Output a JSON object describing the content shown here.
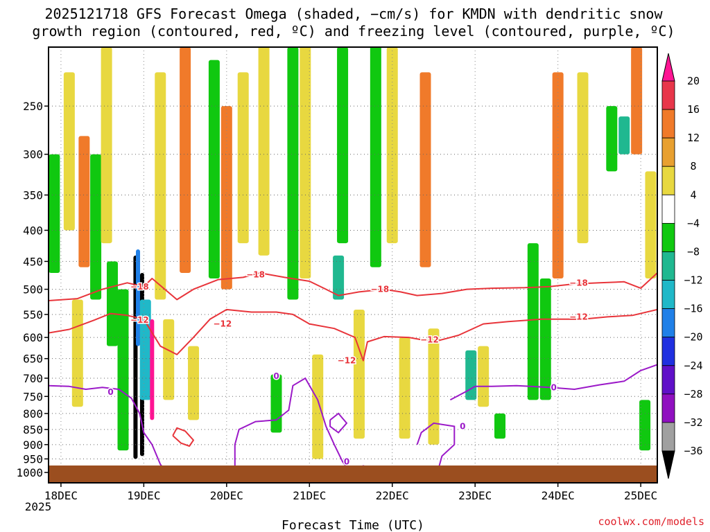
{
  "chart_data": {
    "type": "heatmap",
    "title_line1": "2025121718 GFS Forecast Omega (shaded, −cm/s) for KMDN with dendritic snow",
    "title_line2": "growth region (contoured, red, ºC) and freezing level (contoured, purple, ºC)",
    "xlabel": "Forecast Time (UTC)",
    "ylabel": "",
    "credit": "coolwx.com/models",
    "x_ticks": [
      "18DEC",
      "19DEC",
      "20DEC",
      "21DEC",
      "22DEC",
      "23DEC",
      "24DEC",
      "25DEC"
    ],
    "x_year_label": "2025",
    "x_range_days": [
      17.85,
      25.2
    ],
    "y_range_hPa": [
      1040,
      200
    ],
    "y_ticks": [
      250,
      300,
      350,
      400,
      450,
      500,
      550,
      600,
      650,
      700,
      750,
      800,
      850,
      900,
      950,
      1000
    ],
    "colorbar": {
      "colors": [
        "#ff1493",
        "#e8364a",
        "#f07a2a",
        "#e8a030",
        "#e8d840",
        "#ffffff",
        "#10c810",
        "#20b890",
        "#20b8c8",
        "#2080e8",
        "#2030e0",
        "#6010c8",
        "#9010c0",
        "#a0a0a0",
        "#000000"
      ],
      "labels": [
        "20",
        "16",
        "12",
        "8",
        "4",
        "−4",
        "−8",
        "−12",
        "−16",
        "−20",
        "−24",
        "−28",
        "−32",
        "−36"
      ]
    },
    "dgz_upper_-18C": {
      "color": "#e8343a",
      "label": "−18",
      "points": [
        [
          17.85,
          522
        ],
        [
          18.2,
          518
        ],
        [
          18.5,
          500
        ],
        [
          18.8,
          488
        ],
        [
          19.0,
          495
        ],
        [
          19.1,
          480
        ],
        [
          19.4,
          520
        ],
        [
          19.6,
          500
        ],
        [
          19.9,
          482
        ],
        [
          20.2,
          478
        ],
        [
          20.4,
          470
        ],
        [
          20.7,
          478
        ],
        [
          21.0,
          485
        ],
        [
          21.2,
          500
        ],
        [
          21.35,
          512
        ],
        [
          21.6,
          505
        ],
        [
          21.9,
          500
        ],
        [
          22.1,
          505
        ],
        [
          22.3,
          512
        ],
        [
          22.6,
          508
        ],
        [
          22.9,
          500
        ],
        [
          23.2,
          498
        ],
        [
          23.6,
          497
        ],
        [
          23.9,
          495
        ],
        [
          24.2,
          490
        ],
        [
          24.5,
          488
        ],
        [
          24.8,
          486
        ],
        [
          25.0,
          498
        ],
        [
          25.2,
          470
        ]
      ],
      "label_points": [
        [
          20.35,
          473
        ],
        [
          18.95,
          495
        ],
        [
          21.85,
          500
        ],
        [
          24.25,
          488
        ]
      ]
    },
    "dgz_lower_-12C": {
      "color": "#e8343a",
      "label": "−12",
      "points": [
        [
          17.85,
          590
        ],
        [
          18.1,
          582
        ],
        [
          18.4,
          562
        ],
        [
          18.6,
          548
        ],
        [
          18.8,
          552
        ],
        [
          19.0,
          560
        ],
        [
          19.2,
          620
        ],
        [
          19.4,
          640
        ],
        [
          19.6,
          600
        ],
        [
          19.8,
          560
        ],
        [
          20.0,
          540
        ],
        [
          20.3,
          545
        ],
        [
          20.6,
          545
        ],
        [
          20.8,
          550
        ],
        [
          21.0,
          570
        ],
        [
          21.3,
          580
        ],
        [
          21.55,
          600
        ],
        [
          21.65,
          655
        ],
        [
          21.7,
          610
        ],
        [
          21.9,
          598
        ],
        [
          22.2,
          600
        ],
        [
          22.5,
          610
        ],
        [
          22.8,
          595
        ],
        [
          23.1,
          570
        ],
        [
          23.4,
          565
        ],
        [
          23.8,
          560
        ],
        [
          24.0,
          560
        ],
        [
          24.3,
          560
        ],
        [
          24.6,
          555
        ],
        [
          24.9,
          552
        ],
        [
          25.2,
          540
        ]
      ],
      "label_points": [
        [
          19.95,
          570
        ],
        [
          18.95,
          562
        ],
        [
          21.45,
          655
        ],
        [
          22.45,
          605
        ],
        [
          24.25,
          555
        ]
      ]
    },
    "dgz_closed_-12C_near_19dec": {
      "color": "#e8343a",
      "points": [
        [
          19.35,
          870
        ],
        [
          19.4,
          845
        ],
        [
          19.5,
          855
        ],
        [
          19.6,
          885
        ],
        [
          19.55,
          905
        ],
        [
          19.45,
          895
        ],
        [
          19.35,
          870
        ]
      ]
    },
    "freezing_level_0C": {
      "color": "#9b19c8",
      "label": "0",
      "points": [
        [
          17.85,
          720
        ],
        [
          18.1,
          722
        ],
        [
          18.3,
          730
        ],
        [
          18.5,
          725
        ],
        [
          18.7,
          730
        ],
        [
          18.85,
          755
        ],
        [
          18.95,
          800
        ],
        [
          19.0,
          860
        ],
        [
          19.1,
          900
        ],
        [
          19.2,
          970
        ],
        [
          19.3,
          1010
        ]
      ],
      "points_east": [
        [
          22.7,
          760
        ],
        [
          22.9,
          735
        ],
        [
          23.0,
          722
        ],
        [
          23.2,
          722
        ],
        [
          23.5,
          720
        ],
        [
          23.9,
          725
        ],
        [
          24.2,
          730
        ],
        [
          24.5,
          718
        ],
        [
          24.8,
          708
        ],
        [
          25.0,
          680
        ],
        [
          25.2,
          665
        ]
      ],
      "label_points": [
        [
          18.6,
          738
        ],
        [
          23.95,
          725
        ]
      ]
    },
    "freezing_level_0C_cells": [
      [
        [
          20.1,
          1000
        ],
        [
          20.1,
          900
        ],
        [
          20.15,
          850
        ],
        [
          20.35,
          825
        ],
        [
          20.6,
          820
        ],
        [
          20.75,
          790
        ],
        [
          20.8,
          720
        ],
        [
          20.95,
          700
        ],
        [
          21.1,
          760
        ],
        [
          21.2,
          840
        ],
        [
          21.3,
          900
        ],
        [
          21.4,
          960
        ],
        [
          21.5,
          1000
        ]
      ],
      [
        [
          21.25,
          820
        ],
        [
          21.35,
          800
        ],
        [
          21.45,
          830
        ],
        [
          21.35,
          860
        ],
        [
          21.25,
          840
        ],
        [
          21.25,
          820
        ]
      ],
      [
        [
          21.5,
          1000
        ],
        [
          21.65,
          975
        ],
        [
          21.8,
          990
        ],
        [
          21.85,
          1005
        ]
      ],
      [
        [
          22.3,
          900
        ],
        [
          22.35,
          860
        ],
        [
          22.5,
          830
        ],
        [
          22.75,
          840
        ],
        [
          22.75,
          900
        ],
        [
          22.6,
          940
        ],
        [
          22.55,
          995
        ]
      ]
    ],
    "freezing_level_0C_cell_labels": [
      [
        20.6,
        695
      ],
      [
        22.85,
        840
      ],
      [
        21.45,
        960
      ]
    ],
    "omega_cells": [
      {
        "x": 17.92,
        "p1": 300,
        "p2": 470,
        "level": "green"
      },
      {
        "x": 18.1,
        "p1": 220,
        "p2": 400,
        "level": "yellow"
      },
      {
        "x": 18.2,
        "p1": 520,
        "p2": 780,
        "level": "yellow"
      },
      {
        "x": 18.28,
        "p1": 280,
        "p2": 460,
        "level": "orange"
      },
      {
        "x": 18.42,
        "p1": 300,
        "p2": 520,
        "level": "green"
      },
      {
        "x": 18.55,
        "p1": 200,
        "p2": 420,
        "level": "yellow"
      },
      {
        "x": 18.62,
        "p1": 450,
        "p2": 620,
        "level": "green"
      },
      {
        "x": 18.75,
        "p1": 500,
        "p2": 920,
        "level": "green"
      },
      {
        "x": 18.9,
        "p1": 440,
        "p2": 950,
        "level": "black"
      },
      {
        "x": 18.93,
        "p1": 430,
        "p2": 620,
        "level": "blue"
      },
      {
        "x": 18.98,
        "p1": 470,
        "p2": 940,
        "level": "black"
      },
      {
        "x": 19.02,
        "p1": 520,
        "p2": 760,
        "level": "cyan"
      },
      {
        "x": 19.1,
        "p1": 560,
        "p2": 820,
        "level": "pink"
      },
      {
        "x": 19.2,
        "p1": 220,
        "p2": 520,
        "level": "yellow"
      },
      {
        "x": 19.3,
        "p1": 560,
        "p2": 760,
        "level": "yellow"
      },
      {
        "x": 19.5,
        "p1": 200,
        "p2": 470,
        "level": "orange"
      },
      {
        "x": 19.6,
        "p1": 620,
        "p2": 820,
        "level": "yellow"
      },
      {
        "x": 19.85,
        "p1": 210,
        "p2": 480,
        "level": "green"
      },
      {
        "x": 20.0,
        "p1": 250,
        "p2": 500,
        "level": "orange"
      },
      {
        "x": 20.2,
        "p1": 220,
        "p2": 420,
        "level": "yellow"
      },
      {
        "x": 20.45,
        "p1": 180,
        "p2": 440,
        "level": "yellow"
      },
      {
        "x": 20.6,
        "p1": 690,
        "p2": 860,
        "level": "green"
      },
      {
        "x": 20.8,
        "p1": 200,
        "p2": 520,
        "level": "green"
      },
      {
        "x": 20.95,
        "p1": 180,
        "p2": 480,
        "level": "yellow"
      },
      {
        "x": 21.1,
        "p1": 640,
        "p2": 950,
        "level": "yellow"
      },
      {
        "x": 21.35,
        "p1": 440,
        "p2": 520,
        "level": "teal"
      },
      {
        "x": 21.4,
        "p1": 200,
        "p2": 420,
        "level": "green"
      },
      {
        "x": 21.6,
        "p1": 540,
        "p2": 880,
        "level": "yellow"
      },
      {
        "x": 21.8,
        "p1": 180,
        "p2": 460,
        "level": "green"
      },
      {
        "x": 22.0,
        "p1": 200,
        "p2": 420,
        "level": "yellow"
      },
      {
        "x": 22.15,
        "p1": 600,
        "p2": 880,
        "level": "yellow"
      },
      {
        "x": 22.4,
        "p1": 220,
        "p2": 460,
        "level": "orange"
      },
      {
        "x": 22.5,
        "p1": 580,
        "p2": 900,
        "level": "yellow"
      },
      {
        "x": 22.95,
        "p1": 630,
        "p2": 760,
        "level": "teal"
      },
      {
        "x": 23.1,
        "p1": 620,
        "p2": 780,
        "level": "yellow"
      },
      {
        "x": 23.3,
        "p1": 800,
        "p2": 880,
        "level": "green"
      },
      {
        "x": 23.7,
        "p1": 420,
        "p2": 760,
        "level": "green"
      },
      {
        "x": 23.85,
        "p1": 480,
        "p2": 760,
        "level": "green"
      },
      {
        "x": 24.0,
        "p1": 220,
        "p2": 480,
        "level": "orange"
      },
      {
        "x": 24.3,
        "p1": 220,
        "p2": 420,
        "level": "yellow"
      },
      {
        "x": 24.65,
        "p1": 250,
        "p2": 320,
        "level": "green"
      },
      {
        "x": 24.8,
        "p1": 260,
        "p2": 300,
        "level": "teal"
      },
      {
        "x": 24.95,
        "p1": 200,
        "p2": 300,
        "level": "orange"
      },
      {
        "x": 25.05,
        "p1": 760,
        "p2": 920,
        "level": "green"
      },
      {
        "x": 25.12,
        "p1": 320,
        "p2": 480,
        "level": "yellow"
      }
    ]
  }
}
